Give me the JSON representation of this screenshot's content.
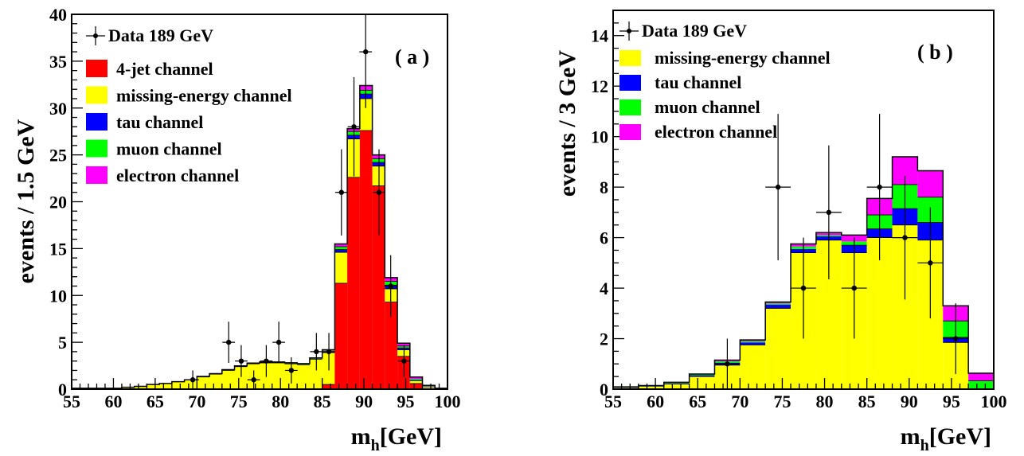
{
  "colors": {
    "four_jet": "#ff0000",
    "missing_energy": "#ffff00",
    "tau": "#0000ff",
    "muon": "#00ff00",
    "electron": "#ff00ff",
    "data": "#000000"
  },
  "chart_data": [
    {
      "type": "bar",
      "subtype": "stacked-histogram",
      "panel_label": "( a )",
      "ylabel": "events / 1.5 GeV",
      "xlabel_main": "m",
      "xlabel_sub": "h",
      "xlabel_unit": "[GeV]",
      "xlim": [
        55,
        100
      ],
      "ylim": [
        0,
        40
      ],
      "xticks": [
        "55",
        "60",
        "65",
        "70",
        "75",
        "80",
        "85",
        "90",
        "95",
        "100"
      ],
      "yticks": [
        "0",
        "5",
        "10",
        "15",
        "20",
        "25",
        "30",
        "35",
        "40"
      ],
      "bin_edges": [
        55,
        56.5,
        58,
        59.5,
        61,
        62.5,
        64,
        65.5,
        67,
        68.5,
        70,
        71.5,
        73,
        74.5,
        76,
        77.5,
        79,
        80.5,
        82,
        83.5,
        85,
        86.5,
        88,
        89.5,
        91,
        92.5,
        94,
        95.5,
        97,
        98.5,
        100
      ],
      "legend_position": "top-left",
      "legend": [
        {
          "label": "Data 189 GeV",
          "kind": "data"
        },
        {
          "label": "4-jet channel",
          "color_key": "four_jet"
        },
        {
          "label": "missing-energy channel",
          "color_key": "missing_energy"
        },
        {
          "label": "tau channel",
          "color_key": "tau"
        },
        {
          "label": "muon channel",
          "color_key": "muon"
        },
        {
          "label": "electron channel",
          "color_key": "electron"
        }
      ],
      "series": [
        {
          "name": "4-jet channel",
          "color_key": "four_jet",
          "values": [
            0,
            0,
            0,
            0,
            0,
            0,
            0,
            0,
            0,
            0,
            0,
            0,
            0,
            0,
            0,
            0,
            0,
            0,
            0,
            0.1,
            0.5,
            11.3,
            22.6,
            27.6,
            21.7,
            9.3,
            3.5,
            0.6,
            0.1,
            0
          ]
        },
        {
          "name": "missing-energy channel",
          "color_key": "missing_energy",
          "values": [
            0.1,
            0.1,
            0.1,
            0.1,
            0.2,
            0.3,
            0.5,
            0.6,
            0.8,
            1.0,
            1.3,
            1.6,
            2.0,
            2.4,
            2.7,
            2.8,
            2.8,
            2.7,
            2.6,
            3.1,
            3.4,
            3.3,
            4.1,
            3.4,
            2.1,
            1.4,
            0.7,
            0.3,
            0.1,
            0.05
          ]
        },
        {
          "name": "tau channel",
          "color_key": "tau",
          "values": [
            0,
            0,
            0,
            0,
            0,
            0,
            0,
            0,
            0,
            0,
            0.02,
            0.02,
            0.03,
            0.03,
            0.03,
            0.04,
            0.04,
            0.04,
            0.05,
            0.05,
            0.1,
            0.3,
            0.4,
            0.5,
            0.4,
            0.4,
            0.2,
            0.1,
            0.05,
            0
          ]
        },
        {
          "name": "muon channel",
          "color_key": "muon",
          "values": [
            0,
            0,
            0,
            0,
            0,
            0,
            0,
            0,
            0,
            0,
            0.02,
            0.02,
            0.03,
            0.03,
            0.03,
            0.04,
            0.04,
            0.04,
            0.05,
            0.05,
            0.1,
            0.3,
            0.4,
            0.4,
            0.4,
            0.4,
            0.2,
            0.1,
            0.05,
            0
          ]
        },
        {
          "name": "electron channel",
          "color_key": "electron",
          "values": [
            0,
            0,
            0,
            0,
            0,
            0,
            0,
            0,
            0,
            0,
            0.02,
            0.02,
            0.02,
            0.02,
            0.02,
            0.02,
            0.02,
            0.03,
            0.03,
            0.03,
            0.1,
            0.3,
            0.3,
            0.5,
            0.4,
            0.4,
            0.3,
            0.2,
            0.1,
            0.05
          ]
        }
      ],
      "data_points": [
        {
          "x": 69.5,
          "y": 1,
          "err": 1
        },
        {
          "x": 73.8,
          "y": 5,
          "err": 2.2
        },
        {
          "x": 75.3,
          "y": 3,
          "err": 1.7
        },
        {
          "x": 76.8,
          "y": 1,
          "err": 1
        },
        {
          "x": 78.3,
          "y": 3,
          "err": 1.7
        },
        {
          "x": 79.8,
          "y": 5,
          "err": 2.2
        },
        {
          "x": 81.3,
          "y": 2,
          "err": 1.4
        },
        {
          "x": 84.3,
          "y": 4,
          "err": 2
        },
        {
          "x": 85.8,
          "y": 4,
          "err": 2
        },
        {
          "x": 87.3,
          "y": 21,
          "err": 4.6
        },
        {
          "x": 88.8,
          "y": 28,
          "err": 5.3
        },
        {
          "x": 90.2,
          "y": 36,
          "err": 6
        },
        {
          "x": 91.8,
          "y": 21,
          "err": 4.6
        },
        {
          "x": 93.2,
          "y": 11,
          "err": 3.3
        },
        {
          "x": 94.8,
          "y": 3,
          "err": 1.7
        }
      ]
    },
    {
      "type": "bar",
      "subtype": "stacked-histogram",
      "panel_label": "( b )",
      "ylabel": "events / 3 GeV",
      "xlabel_main": "m",
      "xlabel_sub": "h",
      "xlabel_unit": "[GeV]",
      "xlim": [
        55,
        100
      ],
      "ylim": [
        0,
        15
      ],
      "xticks": [
        "55",
        "60",
        "65",
        "70",
        "75",
        "80",
        "85",
        "90",
        "95",
        "100"
      ],
      "yticks": [
        "0",
        "2",
        "4",
        "6",
        "8",
        "10",
        "12",
        "14"
      ],
      "bin_edges": [
        55,
        58,
        61,
        64,
        67,
        70,
        73,
        76,
        79,
        82,
        85,
        88,
        91,
        94,
        97,
        100
      ],
      "legend_position": "top-left",
      "legend": [
        {
          "label": "Data 189 GeV",
          "kind": "data"
        },
        {
          "label": "missing-energy channel",
          "color_key": "missing_energy"
        },
        {
          "label": "tau channel",
          "color_key": "tau"
        },
        {
          "label": "muon channel",
          "color_key": "muon"
        },
        {
          "label": "electron channel",
          "color_key": "electron"
        }
      ],
      "series": [
        {
          "name": "missing-energy channel",
          "color_key": "missing_energy",
          "values": [
            0.05,
            0.1,
            0.2,
            0.5,
            0.95,
            1.75,
            3.2,
            5.4,
            5.9,
            5.4,
            6.0,
            6.5,
            5.9,
            1.85,
            0.02
          ]
        },
        {
          "name": "tau channel",
          "color_key": "tau",
          "values": [
            0.02,
            0.02,
            0.03,
            0.05,
            0.1,
            0.1,
            0.15,
            0.15,
            0.15,
            0.3,
            0.35,
            0.65,
            0.7,
            0.2,
            0.01
          ]
        },
        {
          "name": "muon channel",
          "color_key": "muon",
          "values": [
            0.01,
            0.01,
            0.02,
            0.03,
            0.05,
            0.05,
            0.05,
            0.1,
            0.05,
            0.15,
            0.55,
            0.95,
            1.0,
            0.65,
            0.3
          ]
        },
        {
          "name": "electron channel",
          "color_key": "electron",
          "values": [
            0.01,
            0.01,
            0.02,
            0.02,
            0.05,
            0.05,
            0.05,
            0.1,
            0.1,
            0.25,
            0.65,
            1.1,
            1.05,
            0.6,
            0.3
          ]
        }
      ],
      "data_points": [
        {
          "x": 68.5,
          "y": 1,
          "err": 1
        },
        {
          "x": 74.5,
          "y": 8,
          "err": 2.9
        },
        {
          "x": 77.5,
          "y": 4,
          "err": 2
        },
        {
          "x": 80.5,
          "y": 7,
          "err": 2.65
        },
        {
          "x": 83.5,
          "y": 4,
          "err": 2
        },
        {
          "x": 86.5,
          "y": 8,
          "err": 2.9
        },
        {
          "x": 89.5,
          "y": 6,
          "err": 2.45
        },
        {
          "x": 92.5,
          "y": 5,
          "err": 2.2
        },
        {
          "x": 95.5,
          "y": 2,
          "err": 1.4
        }
      ]
    }
  ]
}
